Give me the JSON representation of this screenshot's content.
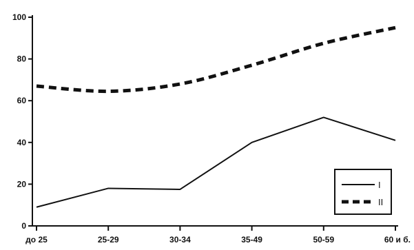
{
  "chart_data": {
    "type": "line",
    "categories": [
      "до 25",
      "25-29",
      "30-34",
      "35-49",
      "50-59",
      "60 и б."
    ],
    "ylim": [
      0,
      100
    ],
    "yticks": [
      0,
      20,
      40,
      60,
      80,
      100
    ],
    "grid": false,
    "legend": "bottom-right",
    "series": [
      {
        "name": "I",
        "style": "solid",
        "color": "#111111",
        "values": [
          9,
          18,
          17.5,
          40,
          52,
          41
        ]
      },
      {
        "name": "II",
        "style": "dashed",
        "color": "#111111",
        "values": [
          67,
          64.5,
          68,
          77,
          87.5,
          95
        ]
      }
    ]
  }
}
